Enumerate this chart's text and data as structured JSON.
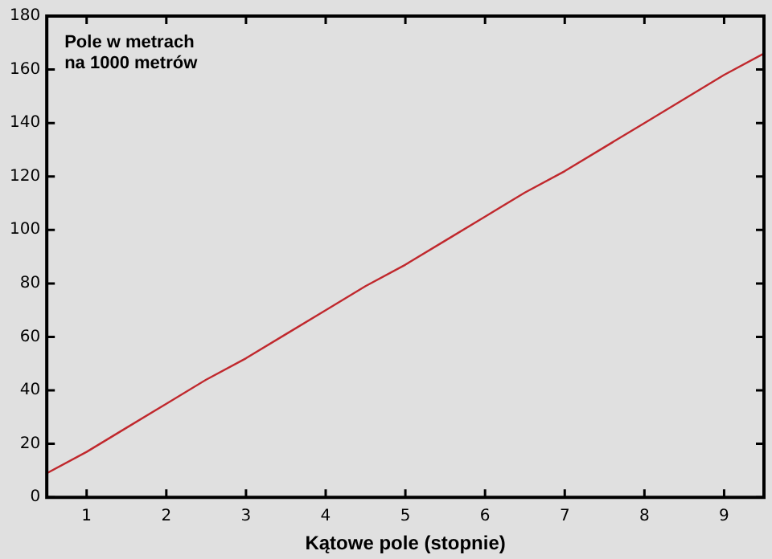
{
  "chart_data": {
    "type": "line",
    "title": "Pole w metrach\nna 1000 metrów",
    "xlabel": "Kątowe pole (stopnie)",
    "x": [
      0.5,
      1,
      1.5,
      2,
      2.5,
      3,
      3.5,
      4,
      4.5,
      5,
      5.5,
      6,
      6.5,
      7,
      7.5,
      8,
      8.5,
      9,
      9.5
    ],
    "series": [
      {
        "color": "#c0282d",
        "values": [
          9,
          17,
          26,
          35,
          44,
          52,
          61,
          70,
          79,
          87,
          96,
          105,
          114,
          122,
          131,
          140,
          149,
          158,
          166
        ]
      }
    ],
    "xlim": [
      0.5,
      9.5
    ],
    "xticks": [
      1,
      2,
      3,
      4,
      5,
      6,
      7,
      8,
      9
    ],
    "ylim": [
      0,
      180
    ],
    "yticks": [
      0,
      20,
      40,
      60,
      80,
      100,
      120,
      140,
      160,
      180
    ],
    "grid": false,
    "legend": false,
    "marker": "none",
    "line_style": "solid"
  }
}
